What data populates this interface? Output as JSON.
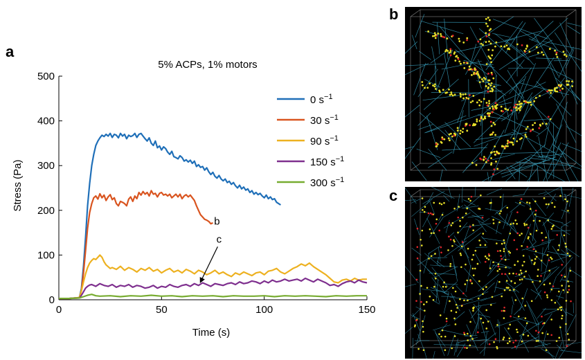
{
  "panels": {
    "a": "a",
    "b": "b",
    "c": "c"
  },
  "chart_data": {
    "type": "line",
    "title": "5% ACPs, 1% motors",
    "xlabel": "Time (s)",
    "ylabel": "Stress (Pa)",
    "xlim": [
      0,
      150
    ],
    "ylim": [
      0,
      500
    ],
    "xticks": [
      0,
      50,
      100,
      150
    ],
    "yticks": [
      0,
      100,
      200,
      300,
      400,
      500
    ],
    "grid": false,
    "legend_position": "top-right",
    "series": [
      {
        "name": "0 s−1",
        "label_base": "0 s",
        "label_sup": "−1",
        "color": "#1f6fb8",
        "x": [
          0,
          5,
          10,
          11,
          12,
          13,
          14,
          15,
          16,
          17,
          18,
          19,
          20,
          21,
          22,
          23,
          24,
          25,
          26,
          27,
          28,
          29,
          30,
          31,
          32,
          33,
          34,
          35,
          36,
          37,
          38,
          39,
          40,
          41,
          42,
          43,
          44,
          45,
          46,
          47,
          48,
          49,
          50,
          51,
          52,
          53,
          54,
          55,
          56,
          57,
          58,
          59,
          60,
          61,
          62,
          63,
          64,
          65,
          66,
          67,
          68,
          69,
          70,
          71,
          72,
          73,
          74,
          75,
          76,
          77,
          78,
          79,
          80,
          81,
          82,
          83,
          84,
          85,
          86,
          87,
          88,
          89,
          90,
          91,
          92,
          93,
          94,
          95,
          96,
          97,
          98,
          99,
          100,
          101,
          102,
          103,
          104,
          105,
          106,
          107,
          108
        ],
        "y": [
          3,
          3,
          5,
          25,
          75,
          140,
          210,
          260,
          300,
          325,
          345,
          355,
          362,
          368,
          365,
          370,
          366,
          372,
          363,
          370,
          368,
          362,
          372,
          366,
          370,
          360,
          368,
          365,
          367,
          372,
          363,
          370,
          372,
          366,
          360,
          355,
          362,
          350,
          345,
          355,
          340,
          344,
          335,
          342,
          338,
          330,
          325,
          332,
          320,
          318,
          315,
          322,
          318,
          310,
          313,
          308,
          312,
          305,
          310,
          298,
          302,
          296,
          298,
          290,
          295,
          286,
          280,
          285,
          276,
          272,
          278,
          270,
          266,
          270,
          262,
          265,
          258,
          262,
          255,
          250,
          256,
          248,
          252,
          245,
          248,
          240,
          244,
          236,
          240,
          235,
          238,
          232,
          228,
          234,
          226,
          230,
          224,
          226,
          218,
          215,
          212
        ]
      },
      {
        "name": "30 s−1",
        "label_base": "30 s",
        "label_sup": "−1",
        "color": "#d9541f",
        "x": [
          0,
          5,
          10,
          11,
          12,
          13,
          14,
          15,
          16,
          17,
          18,
          19,
          20,
          21,
          22,
          23,
          24,
          25,
          26,
          27,
          28,
          29,
          30,
          31,
          32,
          33,
          34,
          35,
          36,
          37,
          38,
          39,
          40,
          41,
          42,
          43,
          44,
          45,
          46,
          47,
          48,
          49,
          50,
          51,
          52,
          53,
          54,
          55,
          56,
          57,
          58,
          59,
          60,
          61,
          62,
          63,
          64,
          65,
          66,
          67,
          68,
          69,
          70,
          71,
          72,
          73,
          74,
          75
        ],
        "y": [
          3,
          3,
          5,
          20,
          60,
          110,
          160,
          195,
          215,
          228,
          232,
          225,
          237,
          228,
          234,
          222,
          230,
          235,
          224,
          228,
          215,
          210,
          220,
          218,
          215,
          210,
          225,
          230,
          220,
          232,
          226,
          240,
          234,
          242,
          236,
          240,
          232,
          244,
          236,
          238,
          230,
          238,
          240,
          234,
          236,
          232,
          236,
          228,
          232,
          236,
          230,
          236,
          226,
          232,
          235,
          230,
          234,
          228,
          222,
          210,
          200,
          190,
          185,
          180,
          178,
          175,
          170,
          172
        ]
      },
      {
        "name": "90 s−1",
        "label_base": "90 s",
        "label_sup": "−1",
        "color": "#edb120",
        "x": [
          0,
          5,
          10,
          11,
          12,
          13,
          14,
          15,
          16,
          17,
          18,
          19,
          20,
          21,
          22,
          23,
          24,
          25,
          26,
          28,
          30,
          32,
          34,
          36,
          38,
          40,
          42,
          44,
          46,
          48,
          50,
          52,
          54,
          56,
          58,
          60,
          62,
          64,
          66,
          68,
          70,
          72,
          74,
          76,
          78,
          80,
          82,
          84,
          86,
          88,
          90,
          92,
          94,
          96,
          98,
          100,
          102,
          104,
          106,
          108,
          110,
          112,
          114,
          116,
          118,
          120,
          122,
          124,
          126,
          128,
          130,
          132,
          134,
          136,
          138,
          140,
          142,
          144,
          146,
          148,
          150
        ],
        "y": [
          3,
          3,
          5,
          20,
          40,
          58,
          72,
          82,
          88,
          92,
          90,
          95,
          100,
          95,
          85,
          78,
          74,
          70,
          72,
          68,
          75,
          66,
          72,
          68,
          62,
          70,
          66,
          72,
          64,
          68,
          60,
          66,
          70,
          62,
          66,
          60,
          68,
          64,
          58,
          66,
          62,
          56,
          60,
          66,
          58,
          62,
          56,
          52,
          60,
          56,
          62,
          58,
          54,
          60,
          62,
          56,
          64,
          66,
          70,
          62,
          58,
          64,
          70,
          74,
          80,
          76,
          82,
          74,
          68,
          62,
          56,
          48,
          40,
          38,
          44,
          46,
          42,
          48,
          44,
          46,
          46
        ]
      },
      {
        "name": "150 s−1",
        "label_base": "150 s",
        "label_sup": "−1",
        "color": "#7e2f8e",
        "x": [
          0,
          5,
          10,
          11,
          12,
          13,
          14,
          15,
          16,
          18,
          20,
          22,
          24,
          26,
          28,
          30,
          32,
          34,
          36,
          38,
          40,
          42,
          44,
          46,
          48,
          50,
          52,
          54,
          56,
          58,
          60,
          62,
          64,
          66,
          68,
          70,
          72,
          74,
          76,
          78,
          80,
          82,
          84,
          86,
          88,
          90,
          92,
          94,
          96,
          98,
          100,
          102,
          104,
          106,
          108,
          110,
          112,
          114,
          116,
          118,
          120,
          122,
          124,
          126,
          128,
          130,
          132,
          134,
          136,
          138,
          140,
          142,
          144,
          146,
          148,
          150
        ],
        "y": [
          3,
          3,
          4,
          10,
          18,
          26,
          30,
          33,
          34,
          30,
          36,
          32,
          30,
          34,
          28,
          32,
          30,
          34,
          28,
          32,
          30,
          26,
          28,
          32,
          26,
          30,
          28,
          34,
          30,
          28,
          32,
          34,
          30,
          36,
          32,
          38,
          34,
          30,
          36,
          34,
          32,
          36,
          38,
          34,
          40,
          36,
          38,
          42,
          40,
          36,
          42,
          38,
          44,
          40,
          42,
          46,
          42,
          44,
          46,
          42,
          48,
          44,
          40,
          46,
          42,
          38,
          32,
          34,
          30,
          36,
          40,
          42,
          38,
          44,
          40,
          38
        ]
      },
      {
        "name": "300 s−1",
        "label_base": "300 s",
        "label_sup": "−1",
        "color": "#77ac30",
        "x": [
          0,
          5,
          10,
          12,
          14,
          16,
          18,
          20,
          25,
          30,
          35,
          40,
          45,
          50,
          55,
          60,
          65,
          70,
          75,
          80,
          85,
          90,
          95,
          100,
          105,
          110,
          115,
          120,
          125,
          130,
          135,
          140,
          145,
          150
        ],
        "y": [
          3,
          3,
          4,
          7,
          10,
          12,
          9,
          8,
          9,
          7,
          9,
          8,
          10,
          8,
          9,
          7,
          9,
          8,
          9,
          7,
          9,
          8,
          8,
          9,
          7,
          9,
          8,
          9,
          8,
          7,
          9,
          8,
          9,
          9
        ]
      }
    ],
    "annotations": [
      {
        "text": "b",
        "x": 77,
        "y": 168
      },
      {
        "text": "c",
        "x": 78,
        "y": 128,
        "arrow_to_x": 69,
        "arrow_to_y": 40
      }
    ]
  }
}
